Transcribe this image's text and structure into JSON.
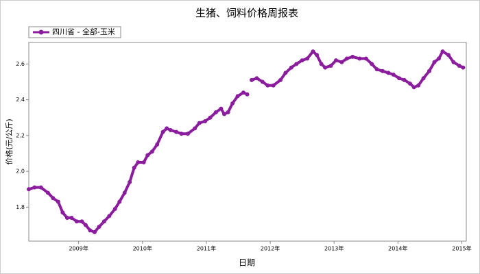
{
  "chart_data": {
    "type": "line",
    "title": "生猪、饲料价格周报表",
    "xlabel": "日期",
    "ylabel": "价格(元/公斤)",
    "legend": "top-left",
    "x": [
      2008.22,
      2008.31,
      2008.41,
      2008.52,
      2008.6,
      2008.68,
      2008.75,
      2008.82,
      2008.89,
      2008.97,
      2009.05,
      2009.11,
      2009.18,
      2009.25,
      2009.32,
      2009.4,
      2009.48,
      2009.57,
      2009.64,
      2009.72,
      2009.8,
      2009.87,
      2009.93,
      2010.02,
      2010.08,
      2010.15,
      2010.23,
      2010.32,
      2010.38,
      2010.44,
      2010.53,
      2010.61,
      2010.71,
      2010.82,
      2010.89,
      2010.98,
      2011.06,
      2011.15,
      2011.23,
      2011.28,
      2011.34,
      2011.41,
      2011.49,
      2011.58,
      2011.64,
      2011.68,
      2011.71,
      2011.79,
      2011.88,
      2011.96,
      2012.05,
      2012.16,
      2012.24,
      2012.33,
      2012.41,
      2012.5,
      2012.58,
      2012.67,
      2012.73,
      2012.8,
      2012.86,
      2012.95,
      2013.03,
      2013.12,
      2013.2,
      2013.29,
      2013.4,
      2013.5,
      2013.59,
      2013.67,
      2013.76,
      2013.85,
      2013.93,
      2014.02,
      2014.1,
      2014.19,
      2014.25,
      2014.32,
      2014.4,
      2014.49,
      2014.57,
      2014.64,
      2014.7,
      2014.79,
      2014.87,
      2014.96,
      2015.02
    ],
    "series": [
      {
        "name": "四川省 - 全部-玉米",
        "color": "#8b1c9e",
        "values": [
          1.9,
          1.91,
          1.91,
          1.88,
          1.85,
          1.83,
          1.77,
          1.74,
          1.74,
          1.72,
          1.72,
          1.7,
          1.67,
          1.66,
          1.69,
          1.72,
          1.75,
          1.79,
          1.83,
          1.88,
          1.94,
          2.02,
          2.05,
          2.05,
          2.09,
          2.11,
          2.15,
          2.22,
          2.24,
          2.23,
          2.22,
          2.21,
          2.21,
          2.24,
          2.27,
          2.28,
          2.3,
          2.33,
          2.35,
          2.32,
          2.33,
          2.38,
          2.42,
          2.44,
          2.43,
          null,
          2.51,
          2.52,
          2.5,
          2.48,
          2.48,
          2.51,
          2.55,
          2.58,
          2.6,
          2.62,
          2.63,
          2.67,
          2.65,
          2.6,
          2.58,
          2.59,
          2.62,
          2.61,
          2.63,
          2.64,
          2.63,
          2.63,
          2.6,
          2.57,
          2.56,
          2.55,
          2.54,
          2.52,
          2.51,
          2.49,
          2.47,
          2.48,
          2.52,
          2.56,
          2.61,
          2.63,
          2.67,
          2.65,
          2.61,
          2.59,
          2.58
        ]
      }
    ],
    "xlim": [
      2008.22,
      2015.07
    ],
    "xticks": [
      {
        "value": 2009,
        "label": "2009年"
      },
      {
        "value": 2010,
        "label": "2010年"
      },
      {
        "value": 2011,
        "label": "2011年"
      },
      {
        "value": 2012,
        "label": "2012年"
      },
      {
        "value": 2013,
        "label": "2013年"
      },
      {
        "value": 2014,
        "label": "2014年"
      },
      {
        "value": 2015,
        "label": "2015年"
      }
    ],
    "ylim": [
      1.61,
      2.72
    ],
    "yticks": [
      1.8,
      {
        "value": 2,
        "label": "2.0"
      },
      2.2,
      2.4,
      2.6
    ]
  }
}
